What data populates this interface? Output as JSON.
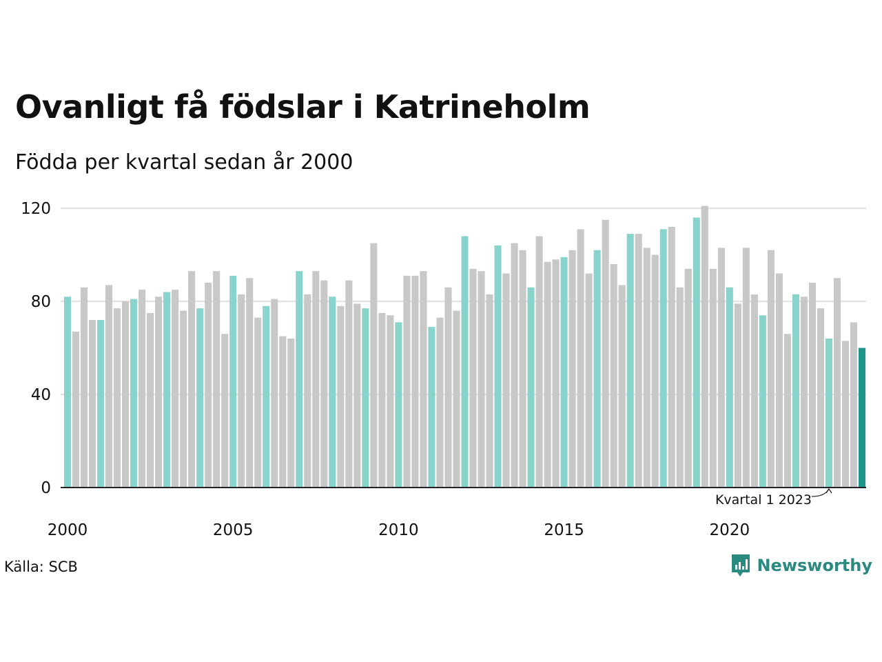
{
  "title": "Ovanligt få födslar i Katrineholm",
  "subtitle": "Födda per kvartal sedan år 2000",
  "source": "Källa: SCB",
  "brand": {
    "name": "Newsworthy",
    "icon": "bar-chart-bubble-icon"
  },
  "colors": {
    "q1": "#8ad3cd",
    "other": "#c8c8c8",
    "highlight": "#1f9488",
    "grid": "#e3e3e3",
    "axis": "#222222"
  },
  "chart_data": {
    "type": "bar",
    "title": "Ovanligt få födslar i Katrineholm",
    "subtitle": "Födda per kvartal sedan år 2000",
    "xlabel": "",
    "ylabel": "",
    "ylim": [
      0,
      120
    ],
    "yticks": [
      0,
      40,
      80,
      120
    ],
    "xticks": [
      2000,
      2005,
      2010,
      2015,
      2020
    ],
    "grid": true,
    "start_year": 2000,
    "values": [
      82,
      67,
      86,
      72,
      72,
      87,
      77,
      80,
      81,
      85,
      75,
      82,
      84,
      85,
      76,
      93,
      77,
      88,
      93,
      66,
      91,
      83,
      90,
      73,
      78,
      81,
      65,
      64,
      93,
      83,
      93,
      89,
      82,
      78,
      89,
      79,
      77,
      105,
      75,
      74,
      71,
      91,
      91,
      93,
      69,
      73,
      86,
      76,
      108,
      94,
      93,
      83,
      104,
      92,
      105,
      102,
      86,
      108,
      97,
      98,
      99,
      102,
      111,
      92,
      102,
      115,
      96,
      87,
      109,
      109,
      103,
      100,
      111,
      112,
      86,
      94,
      116,
      121,
      94,
      103,
      86,
      79,
      103,
      83,
      74,
      102,
      92,
      66,
      83,
      82,
      88,
      77,
      64,
      90,
      63,
      71,
      60
    ],
    "annotation": {
      "label": "Kvartal 1 2023"
    }
  }
}
